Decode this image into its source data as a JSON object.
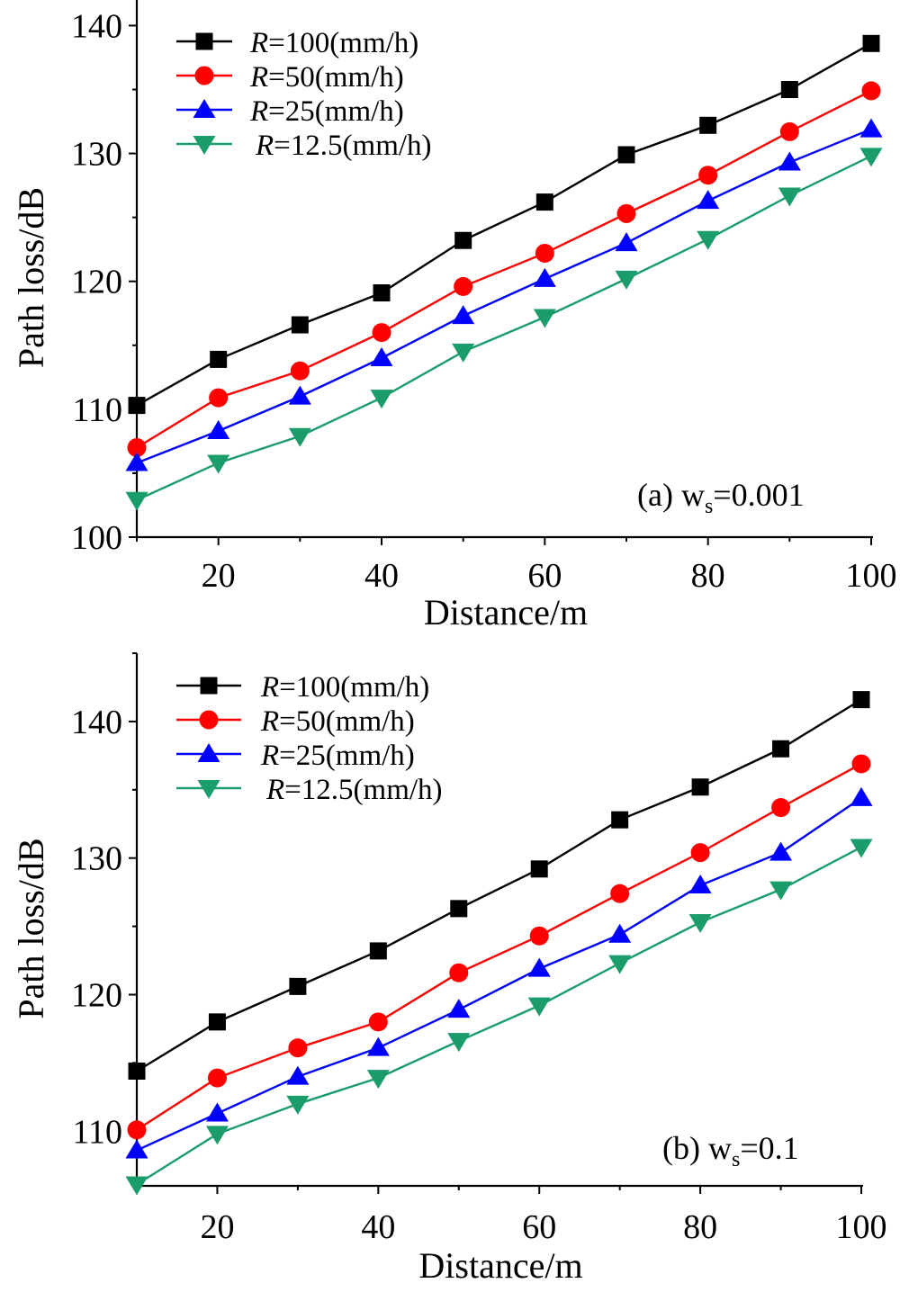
{
  "chart_data": [
    {
      "type": "line",
      "annotation": {
        "prefix": "(a) w",
        "subscript": "s",
        "suffix": "=0.001"
      },
      "xlabel": "Distance/m",
      "ylabel": "Path loss/dB",
      "xlim": [
        10,
        100
      ],
      "ylim": [
        100,
        142
      ],
      "xticks": [
        20,
        40,
        60,
        80,
        100
      ],
      "yticks": [
        100,
        110,
        120,
        130,
        140
      ],
      "x": [
        10,
        20,
        30,
        40,
        50,
        60,
        70,
        80,
        90,
        100
      ],
      "legend_position": "top-left",
      "series": [
        {
          "name": "=100(mm/h)",
          "legend_var": "R",
          "color": "#000000",
          "marker": "square",
          "values": [
            110.3,
            113.9,
            116.6,
            119.1,
            123.2,
            126.2,
            129.9,
            132.2,
            135.0,
            138.6
          ]
        },
        {
          "name": "=50(mm/h)",
          "legend_var": "R",
          "color": "#ff0000",
          "marker": "circle",
          "values": [
            107.0,
            110.9,
            113.0,
            116.0,
            119.6,
            122.2,
            125.3,
            128.3,
            131.7,
            134.9
          ]
        },
        {
          "name": "=25(mm/h)",
          "legend_var": "R",
          "color": "#0000ff",
          "marker": "triangle-up",
          "values": [
            105.8,
            108.3,
            111.0,
            114.0,
            117.3,
            120.2,
            123.0,
            126.3,
            129.3,
            131.9
          ]
        },
        {
          "name": "=12.5(mm/h)",
          "legend_var": "R",
          "color": "#1a9c6b",
          "marker": "triangle-down",
          "values": [
            102.9,
            105.8,
            107.9,
            110.9,
            114.5,
            117.2,
            120.2,
            123.3,
            126.7,
            129.8
          ]
        }
      ]
    },
    {
      "type": "line",
      "annotation": {
        "prefix": "(b) w",
        "subscript": "s",
        "suffix": "=0.1"
      },
      "xlabel": "Distance/m",
      "ylabel": "Path loss/dB",
      "xlim": [
        10,
        100
      ],
      "ylim": [
        106,
        145
      ],
      "xticks": [
        20,
        40,
        60,
        80,
        100
      ],
      "yticks": [
        110,
        120,
        130,
        140
      ],
      "x": [
        10,
        20,
        30,
        40,
        50,
        60,
        70,
        80,
        90,
        100
      ],
      "legend_position": "top-left",
      "series": [
        {
          "name": "=100(mm/h)",
          "legend_var": "R",
          "color": "#000000",
          "marker": "square",
          "values": [
            114.4,
            118.0,
            120.6,
            123.2,
            126.3,
            129.2,
            132.8,
            135.2,
            138.0,
            141.6
          ]
        },
        {
          "name": "=50(mm/h)",
          "legend_var": "R",
          "color": "#ff0000",
          "marker": "circle",
          "values": [
            110.1,
            113.9,
            116.1,
            118.0,
            121.6,
            124.3,
            127.4,
            130.4,
            133.7,
            136.9
          ]
        },
        {
          "name": "=25(mm/h)",
          "legend_var": "R",
          "color": "#0000ff",
          "marker": "triangle-up",
          "values": [
            108.6,
            111.3,
            114.0,
            116.1,
            118.9,
            121.9,
            124.4,
            128.0,
            130.4,
            134.4
          ]
        },
        {
          "name": "=12.5(mm/h)",
          "legend_var": "R",
          "color": "#1a9c6b",
          "marker": "triangle-down",
          "values": [
            106.1,
            109.8,
            112.0,
            113.9,
            116.6,
            119.2,
            122.3,
            125.3,
            127.7,
            130.8
          ]
        }
      ]
    }
  ]
}
